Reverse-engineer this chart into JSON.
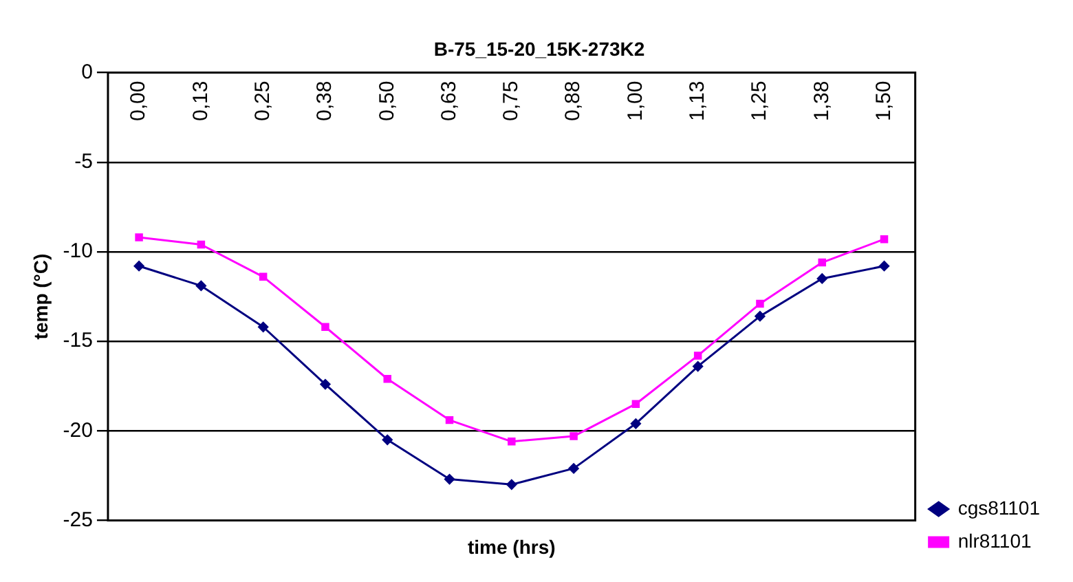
{
  "chart_data": {
    "type": "line",
    "title": "B-75_15-20_15K-273K2",
    "xlabel": "time (hrs)",
    "ylabel": "temp (°C)",
    "categories": [
      "0,00",
      "0,13",
      "0,25",
      "0,38",
      "0,50",
      "0,63",
      "0,75",
      "0,88",
      "1,00",
      "1,13",
      "1,25",
      "1,38",
      "1,50"
    ],
    "series": [
      {
        "name": "cgs81101",
        "color": "#000080",
        "marker": "diamond",
        "values": [
          -10.8,
          -11.9,
          -14.2,
          -17.4,
          -20.5,
          -22.7,
          -23.0,
          -22.1,
          -19.6,
          -16.4,
          -13.6,
          -11.5,
          -10.8
        ]
      },
      {
        "name": "nlr81101",
        "color": "#ff00ff",
        "marker": "square",
        "values": [
          -9.2,
          -9.6,
          -11.4,
          -14.2,
          -17.1,
          -19.4,
          -20.6,
          -20.3,
          -18.5,
          -15.8,
          -12.9,
          -10.6,
          -9.3
        ]
      }
    ],
    "ylim": [
      -25,
      0
    ],
    "yticks": [
      0,
      -5,
      -10,
      -15,
      -20,
      -25
    ],
    "grid": "y",
    "legend": "bottom right"
  }
}
